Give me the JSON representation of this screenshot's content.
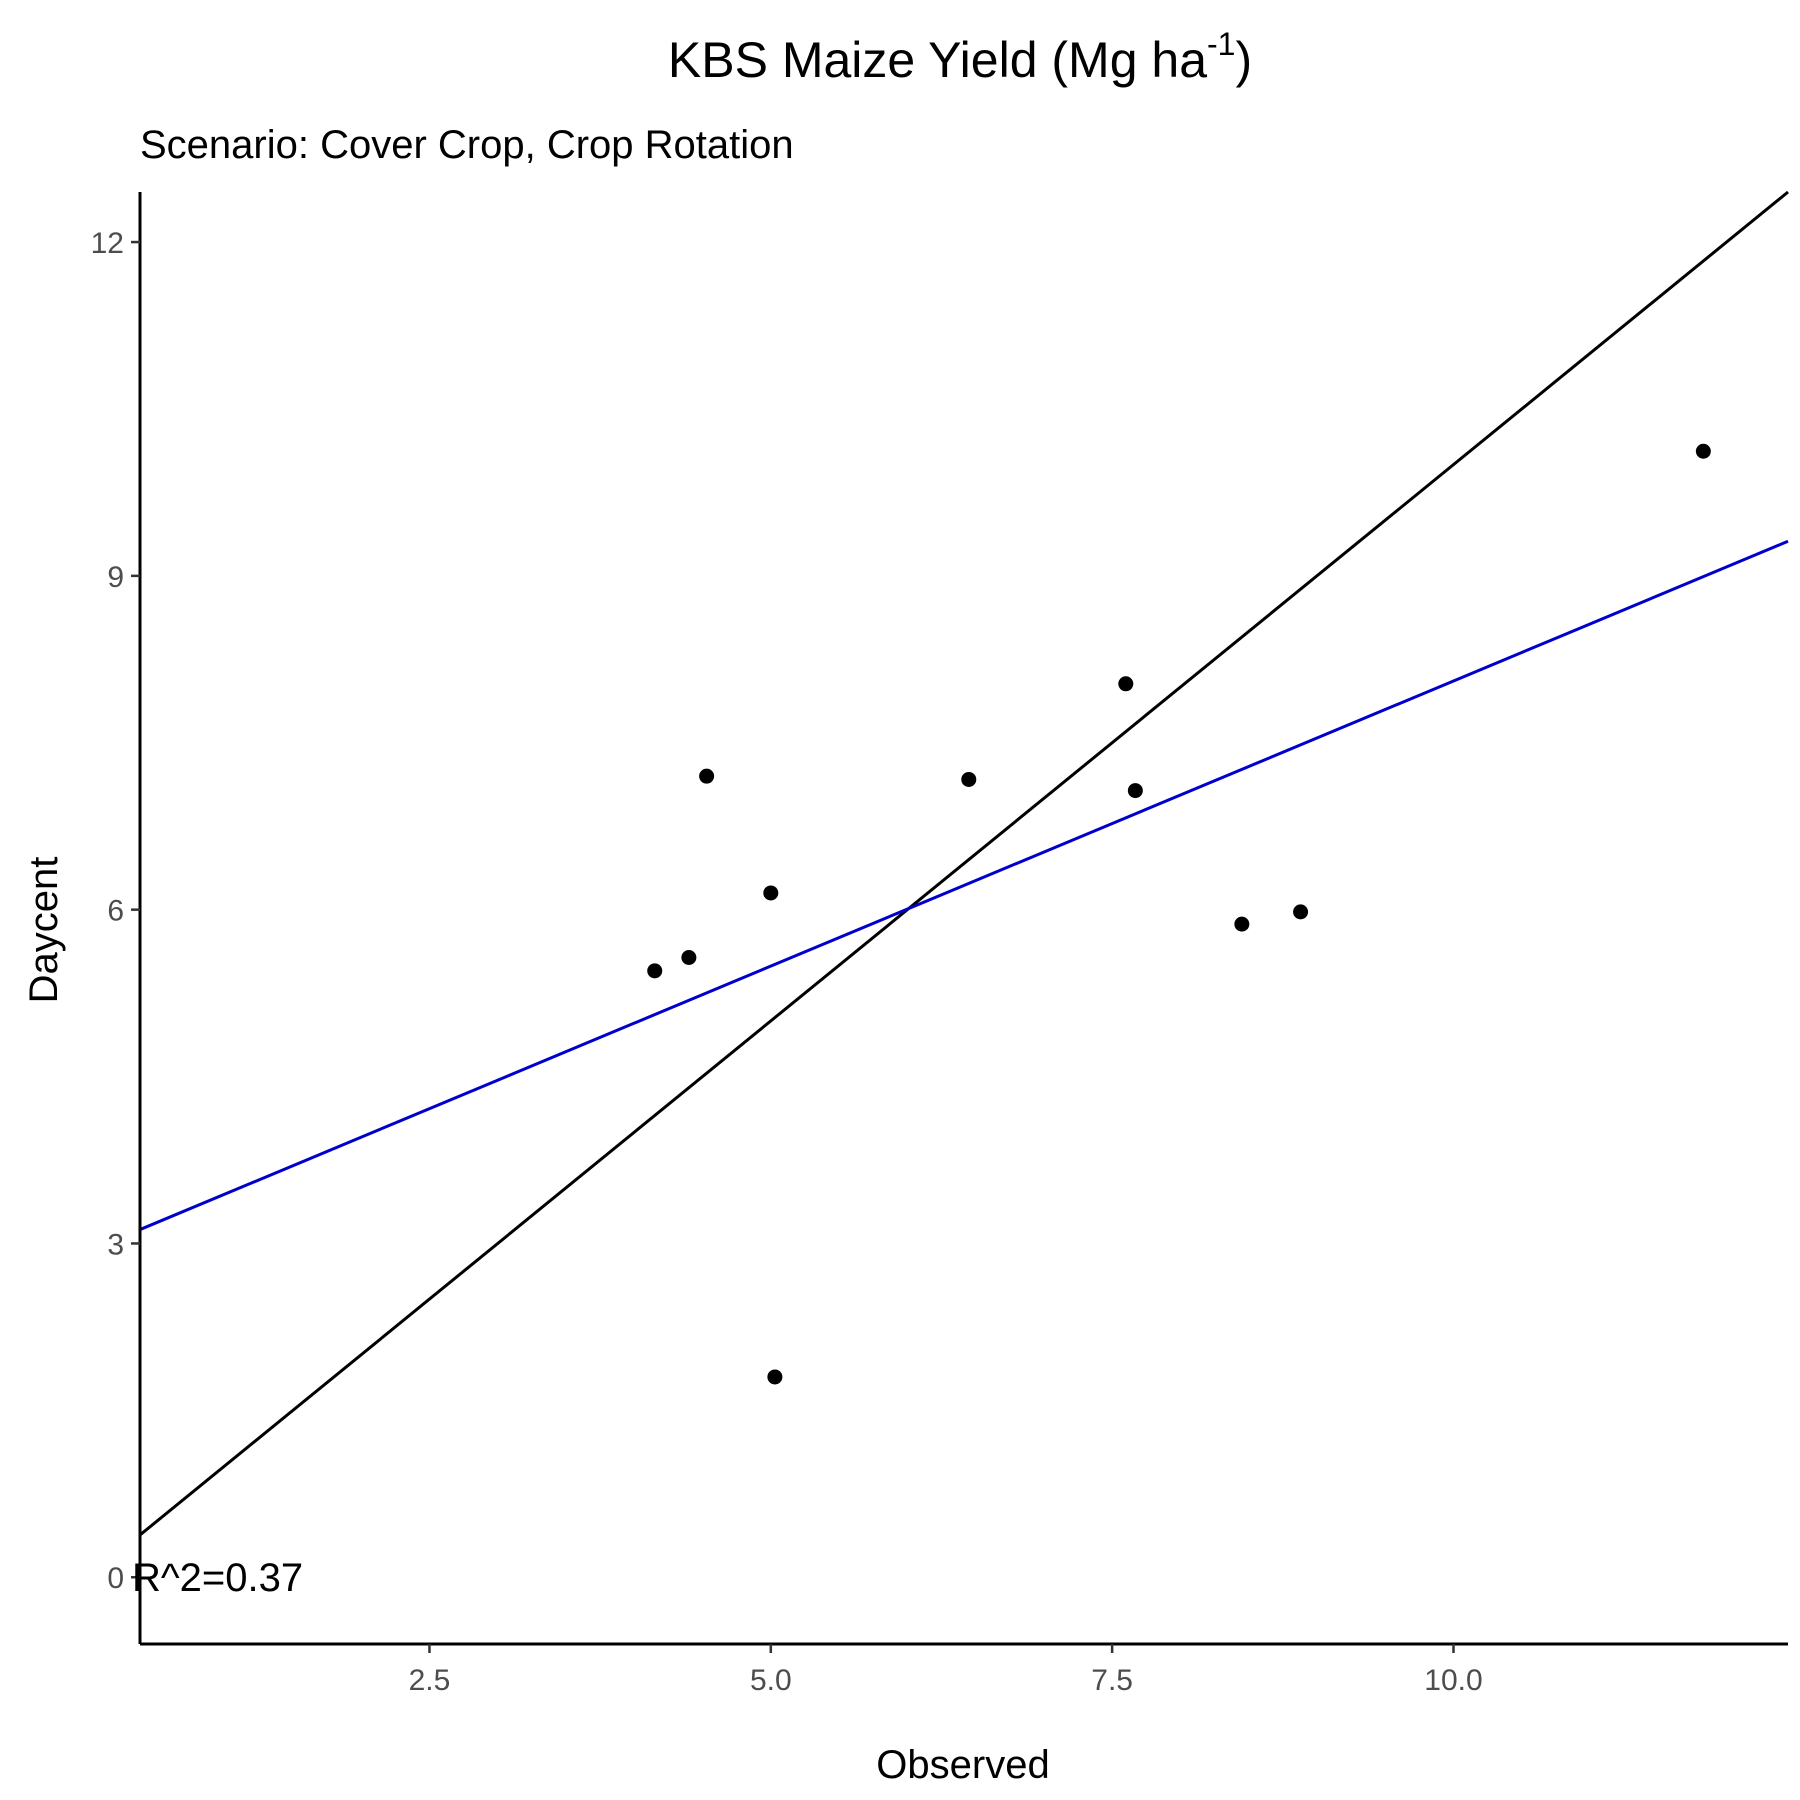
{
  "chart_data": {
    "type": "scatter",
    "title": {
      "main": "KBS Maize Yield (Mg ha",
      "superscript": "-1",
      "close": ")"
    },
    "subtitle": "Scenario: Cover Crop, Crop Rotation",
    "xlabel": "Observed",
    "ylabel": "Daycent",
    "xlim": [
      0.38,
      12.45
    ],
    "ylim": [
      -0.6,
      12.45
    ],
    "x_ticks": [
      {
        "value": 2.5,
        "label": "2.5"
      },
      {
        "value": 5.0,
        "label": "5.0"
      },
      {
        "value": 7.5,
        "label": "7.5"
      },
      {
        "value": 10.0,
        "label": "10.0"
      }
    ],
    "y_ticks": [
      {
        "value": 0,
        "label": "0"
      },
      {
        "value": 3,
        "label": "3"
      },
      {
        "value": 6,
        "label": "6"
      },
      {
        "value": 9,
        "label": "9"
      },
      {
        "value": 12,
        "label": "12"
      }
    ],
    "points": [
      {
        "x": 4.15,
        "y": 5.45
      },
      {
        "x": 4.4,
        "y": 5.57
      },
      {
        "x": 4.53,
        "y": 7.2
      },
      {
        "x": 5.0,
        "y": 6.15
      },
      {
        "x": 5.03,
        "y": 1.8
      },
      {
        "x": 6.45,
        "y": 7.17
      },
      {
        "x": 7.6,
        "y": 8.03
      },
      {
        "x": 7.67,
        "y": 7.07
      },
      {
        "x": 8.45,
        "y": 5.87
      },
      {
        "x": 8.88,
        "y": 5.98
      },
      {
        "x": 11.83,
        "y": 10.12
      }
    ],
    "lines": [
      {
        "type": "one-to-one",
        "color": "#000000",
        "slope": 1.0,
        "intercept": 0.0
      },
      {
        "type": "regression",
        "color": "#0000cc",
        "slope": 0.5125,
        "intercept": 2.93
      }
    ],
    "annotation": {
      "text": "R^2=0.37",
      "x": 0.38,
      "y": 0
    }
  }
}
